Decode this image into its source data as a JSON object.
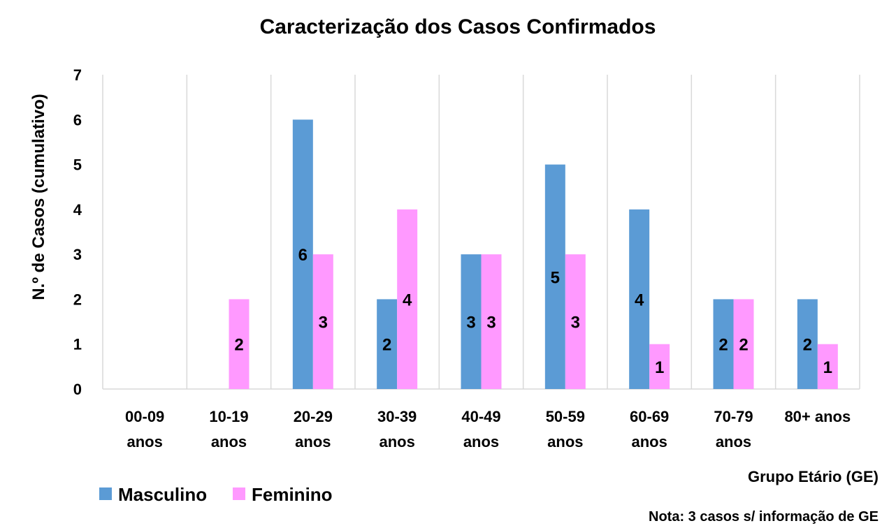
{
  "chart_data": {
    "type": "bar",
    "title": "Caracterização dos Casos Confirmados",
    "ylabel": "N.º de Casos (cumulativo)",
    "xlabel": "Grupo Etário (GE)",
    "ylim": [
      0,
      7
    ],
    "yticks": [
      "0",
      "1",
      "2",
      "3",
      "4",
      "5",
      "6",
      "7"
    ],
    "grid": "vertical category separators",
    "legend_position": "bottom-left",
    "categories": [
      [
        "00-09",
        "anos"
      ],
      [
        "10-19",
        "anos"
      ],
      [
        "20-29",
        "anos"
      ],
      [
        "30-39",
        "anos"
      ],
      [
        "40-49",
        "anos"
      ],
      [
        "50-59",
        "anos"
      ],
      [
        "60-69",
        "anos"
      ],
      [
        "70-79",
        "anos"
      ],
      [
        "80+ anos"
      ]
    ],
    "series": [
      {
        "name": "Masculino",
        "color": "#5b9bd5",
        "values": [
          0,
          0,
          6,
          2,
          3,
          5,
          4,
          2,
          2
        ]
      },
      {
        "name": "Feminino",
        "color": "#ff99ff",
        "values": [
          0,
          2,
          3,
          4,
          3,
          3,
          1,
          2,
          1
        ]
      }
    ],
    "note": "Nota: 3 casos s/ informação de GE"
  }
}
